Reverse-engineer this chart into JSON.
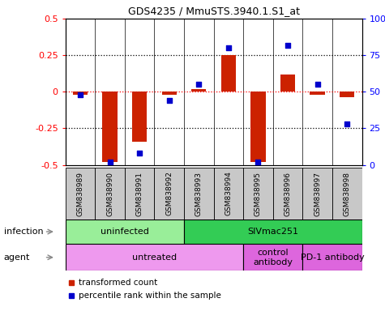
{
  "title": "GDS4235 / MmuSTS.3940.1.S1_at",
  "samples": [
    "GSM838989",
    "GSM838990",
    "GSM838991",
    "GSM838992",
    "GSM838993",
    "GSM838994",
    "GSM838995",
    "GSM838996",
    "GSM838997",
    "GSM838998"
  ],
  "transformed_count": [
    -0.02,
    -0.48,
    -0.34,
    -0.02,
    0.02,
    0.25,
    -0.48,
    0.12,
    -0.02,
    -0.04
  ],
  "percentile_rank": [
    48,
    2,
    8,
    44,
    55,
    80,
    2,
    82,
    55,
    28
  ],
  "ylim_left": [
    -0.5,
    0.5
  ],
  "ylim_right": [
    0,
    100
  ],
  "yticks_left": [
    -0.5,
    -0.25,
    0,
    0.25,
    0.5
  ],
  "yticks_right": [
    0,
    25,
    50,
    75,
    100
  ],
  "hlines": [
    -0.25,
    0,
    0.25
  ],
  "bar_color": "#CC2200",
  "dot_color": "#0000CC",
  "infection_groups": [
    {
      "label": "uninfected",
      "start": 0,
      "end": 3,
      "color": "#99EE99"
    },
    {
      "label": "SIVmac251",
      "start": 4,
      "end": 9,
      "color": "#33CC55"
    }
  ],
  "agent_groups": [
    {
      "label": "untreated",
      "start": 0,
      "end": 5,
      "color": "#EE99EE"
    },
    {
      "label": "control\nantibody",
      "start": 6,
      "end": 7,
      "color": "#DD66DD"
    },
    {
      "label": "PD-1 antibody",
      "start": 8,
      "end": 9,
      "color": "#DD66DD"
    }
  ],
  "legend_bar_color": "#CC2200",
  "legend_dot_color": "#0000CC",
  "legend_bar_label": "transformed count",
  "legend_dot_label": "percentile rank within the sample",
  "infection_label": "infection",
  "agent_label": "agent",
  "sample_box_color": "#C8C8C8"
}
